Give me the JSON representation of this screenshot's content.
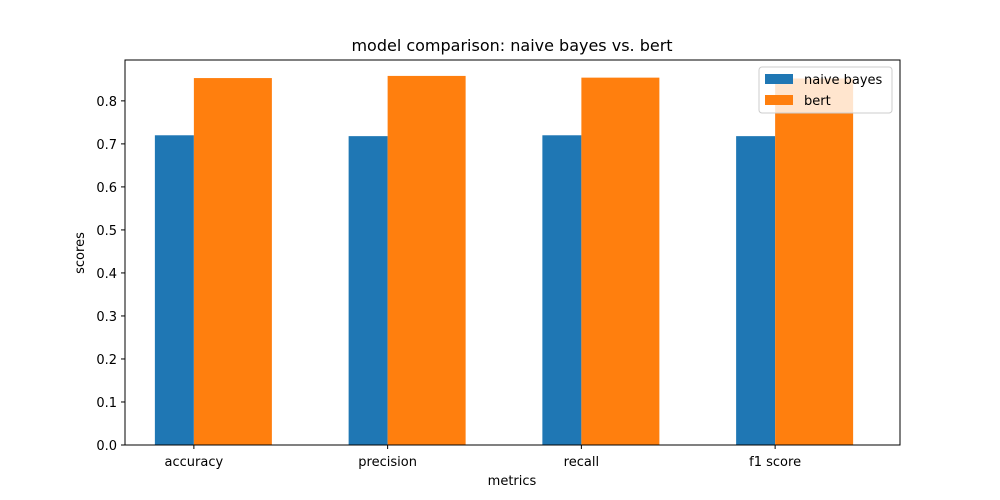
{
  "chart_data": {
    "type": "bar",
    "title": "model comparison: naive bayes vs. bert",
    "xlabel": "metrics",
    "ylabel": "scores",
    "categories": [
      "accuracy",
      "precision",
      "recall",
      "f1 score"
    ],
    "series": [
      {
        "name": "naive bayes",
        "values": [
          0.72,
          0.718,
          0.72,
          0.718
        ],
        "color": "#1f77b4"
      },
      {
        "name": "bert",
        "values": [
          0.853,
          0.858,
          0.854,
          0.852
        ],
        "color": "#ff7f0e"
      }
    ],
    "ylim": [
      0,
      0.895
    ],
    "yticks": [
      "0.0",
      "0.1",
      "0.2",
      "0.3",
      "0.4",
      "0.5",
      "0.6",
      "0.7",
      "0.8"
    ],
    "grid": false,
    "legend_position": "top-right"
  }
}
